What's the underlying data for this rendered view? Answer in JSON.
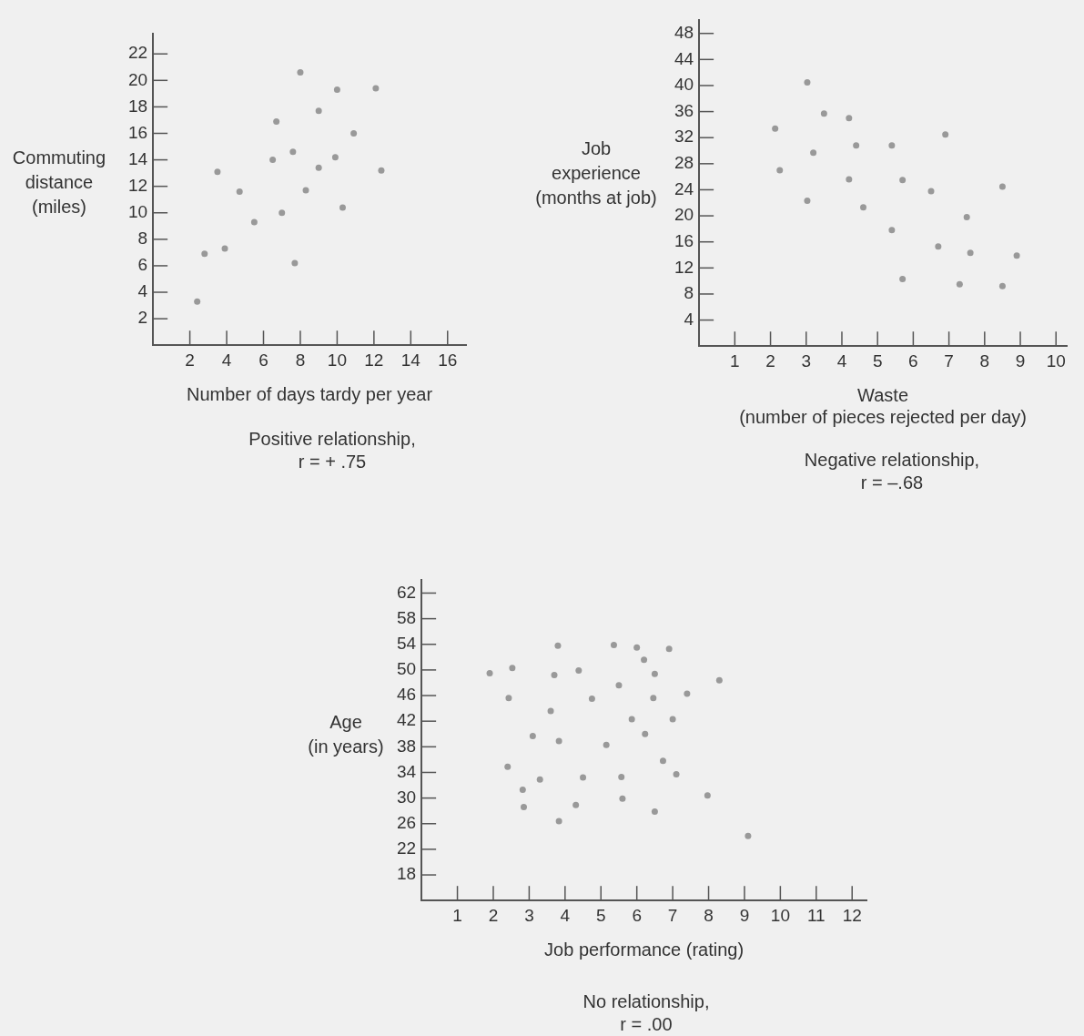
{
  "chart_data": [
    {
      "type": "scatter",
      "xlabel": "Number of days tardy per year",
      "ylabel": "Commuting\ndistance\n(miles)",
      "annotations": [
        "Positive relationship,\nr = + .75"
      ],
      "grid": false,
      "marker": "circle",
      "legend": false,
      "xlim": [
        0,
        17
      ],
      "ylim": [
        0,
        23.5
      ],
      "xticks": [
        2,
        4,
        6,
        8,
        10,
        12,
        14,
        16
      ],
      "yticks": [
        2,
        4,
        6,
        8,
        10,
        12,
        14,
        16,
        18,
        20,
        22
      ],
      "series": [
        {
          "color": "#999999",
          "x": [
            2.4,
            2.8,
            3.9,
            3.5,
            4.7,
            5.5,
            6.5,
            6.7,
            7.0,
            7.6,
            7.7,
            8.0,
            8.3,
            9.0,
            9.0,
            9.9,
            10.0,
            10.3,
            10.9,
            12.1,
            12.4
          ],
          "values": [
            3.3,
            6.9,
            7.3,
            13.1,
            11.6,
            9.3,
            14.0,
            16.9,
            10.0,
            14.6,
            6.2,
            20.6,
            11.7,
            17.7,
            13.4,
            14.2,
            19.3,
            10.4,
            16.0,
            19.4,
            13.2
          ]
        }
      ]
    },
    {
      "type": "scatter",
      "xlabel": "Waste\n(number of pieces rejected per day)",
      "ylabel": "Job\nexperience\n(months at job)",
      "annotations": [
        "Negative relationship,\nr = –.68"
      ],
      "grid": false,
      "marker": "circle",
      "legend": false,
      "xlim": [
        0,
        10.3
      ],
      "ylim": [
        0,
        50
      ],
      "xticks": [
        1,
        2,
        3,
        4,
        5,
        6,
        7,
        8,
        9,
        10
      ],
      "yticks": [
        4,
        8,
        12,
        16,
        20,
        24,
        28,
        32,
        36,
        40,
        44,
        48
      ],
      "series": [
        {
          "color": "#999999",
          "x": [
            2.13,
            2.26,
            3.03,
            3.03,
            3.2,
            3.5,
            4.2,
            4.2,
            4.4,
            4.6,
            5.4,
            5.4,
            5.7,
            5.7,
            6.5,
            6.7,
            6.9,
            7.3,
            7.5,
            7.6,
            8.5,
            8.5,
            8.9
          ],
          "values": [
            33.4,
            27.0,
            40.5,
            22.3,
            29.7,
            35.7,
            35.0,
            25.6,
            30.8,
            21.3,
            17.8,
            30.8,
            25.5,
            10.3,
            23.8,
            15.3,
            32.5,
            9.5,
            19.8,
            14.3,
            24.5,
            9.2,
            13.9
          ]
        }
      ]
    },
    {
      "type": "scatter",
      "xlabel": "Job performance (rating)",
      "ylabel": "Age\n(in years)",
      "annotations": [
        "No relationship,\nr = .00"
      ],
      "grid": false,
      "marker": "circle",
      "legend": false,
      "xlim": [
        0,
        12.4
      ],
      "ylim": [
        14,
        64
      ],
      "xticks": [
        1,
        2,
        3,
        4,
        5,
        6,
        7,
        8,
        9,
        10,
        11,
        12
      ],
      "yticks": [
        18,
        22,
        26,
        30,
        34,
        38,
        42,
        46,
        50,
        54,
        58,
        62
      ],
      "series": [
        {
          "color": "#999999",
          "x": [
            1.9,
            2.53,
            2.43,
            2.4,
            2.82,
            2.85,
            3.1,
            3.3,
            3.6,
            3.7,
            3.8,
            3.83,
            3.83,
            4.3,
            4.38,
            4.5,
            4.75,
            5.15,
            5.36,
            5.5,
            5.57,
            5.6,
            5.86,
            6.0,
            6.2,
            6.23,
            6.46,
            6.5,
            6.5,
            6.73,
            6.9,
            7.0,
            7.1,
            7.4,
            7.97,
            8.3,
            9.1
          ],
          "values": [
            49.5,
            50.3,
            45.6,
            34.9,
            31.3,
            28.6,
            39.7,
            32.9,
            43.6,
            49.2,
            53.8,
            38.9,
            26.4,
            28.9,
            49.9,
            33.2,
            45.5,
            38.3,
            53.9,
            47.6,
            33.3,
            29.9,
            42.3,
            53.5,
            51.6,
            40.0,
            45.6,
            49.4,
            27.9,
            35.8,
            53.3,
            42.3,
            33.7,
            46.3,
            30.4,
            48.4,
            24.1
          ]
        }
      ]
    }
  ]
}
